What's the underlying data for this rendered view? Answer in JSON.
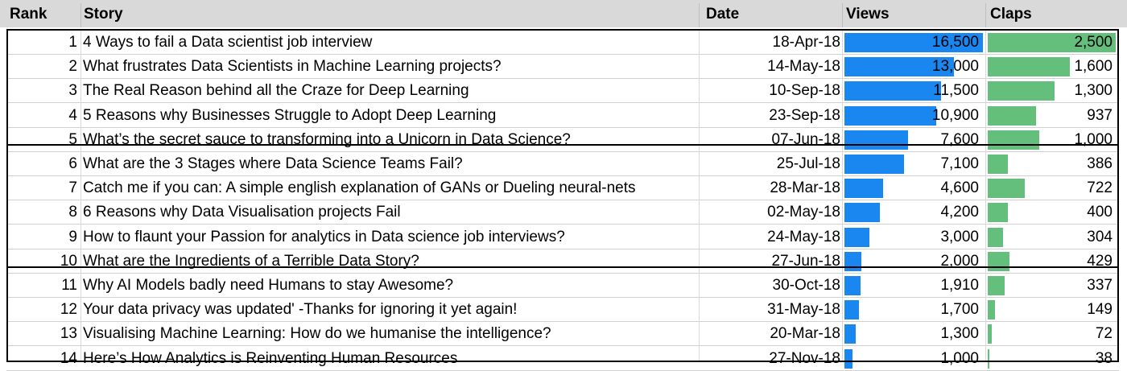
{
  "headers": {
    "rank": "Rank",
    "story": "Story",
    "date": "Date",
    "views": "Views",
    "claps": "Claps"
  },
  "colors": {
    "header_bg": "#d9d9d9",
    "views_bar": "#1a86f0",
    "claps_bar": "#63bf7b"
  },
  "scales": {
    "views_max": 16500,
    "claps_max": 2500
  },
  "rows": [
    {
      "rank": "1",
      "story": "4 Ways to fail a Data scientist job interview",
      "date": "18-Apr-18",
      "views": "16,500",
      "views_value": 16500,
      "claps": "2,500",
      "claps_value": 2500
    },
    {
      "rank": "2",
      "story": "What frustrates Data Scientists in Machine Learning projects?",
      "date": "14-May-18",
      "views": "13,000",
      "views_value": 13000,
      "claps": "1,600",
      "claps_value": 1600
    },
    {
      "rank": "3",
      "story": "The Real Reason behind all the Craze for Deep Learning",
      "date": "10-Sep-18",
      "views": "11,500",
      "views_value": 11500,
      "claps": "1,300",
      "claps_value": 1300
    },
    {
      "rank": "4",
      "story": "5 Reasons why Businesses Struggle to Adopt Deep Learning",
      "date": "23-Sep-18",
      "views": "10,900",
      "views_value": 10900,
      "claps": "937",
      "claps_value": 937
    },
    {
      "rank": "5",
      "story": "What’s the secret sauce to transforming into a Unicorn in Data Science?",
      "date": "07-Jun-18",
      "views": "7,600",
      "views_value": 7600,
      "claps": "1,000",
      "claps_value": 1000
    },
    {
      "rank": "6",
      "story": "What are the 3 Stages where Data Science Teams Fail?",
      "date": "25-Jul-18",
      "views": "7,100",
      "views_value": 7100,
      "claps": "386",
      "claps_value": 386
    },
    {
      "rank": "7",
      "story": "Catch me if you can: A simple english explanation of GANs or Dueling neural-nets",
      "date": "28-Mar-18",
      "views": "4,600",
      "views_value": 4600,
      "claps": "722",
      "claps_value": 722
    },
    {
      "rank": "8",
      "story": "6 Reasons why Data Visualisation projects Fail",
      "date": "02-May-18",
      "views": "4,200",
      "views_value": 4200,
      "claps": "400",
      "claps_value": 400
    },
    {
      "rank": "9",
      "story": "How to flaunt your Passion for analytics in Data science job interviews?",
      "date": "24-May-18",
      "views": "3,000",
      "views_value": 3000,
      "claps": "304",
      "claps_value": 304
    },
    {
      "rank": "10",
      "story": "What are the Ingredients of a Terrible Data Story?",
      "date": "27-Jun-18",
      "views": "2,000",
      "views_value": 2000,
      "claps": "429",
      "claps_value": 429
    },
    {
      "rank": "11",
      "story": "Why AI Models badly need Humans to stay Awesome?",
      "date": "30-Oct-18",
      "views": "1,910",
      "views_value": 1910,
      "claps": "337",
      "claps_value": 337
    },
    {
      "rank": "12",
      "story": "Your data privacy was updated' -Thanks for ignoring it yet again!",
      "date": "31-May-18",
      "views": "1,700",
      "views_value": 1700,
      "claps": "149",
      "claps_value": 149
    },
    {
      "rank": "13",
      "story": "Visualising Machine Learning: How do we humanise the intelligence?",
      "date": "20-Mar-18",
      "views": "1,300",
      "views_value": 1300,
      "claps": "72",
      "claps_value": 72
    },
    {
      "rank": "14",
      "story": "Here’s How Analytics is Reinventing Human Resources",
      "date": "27-Nov-18",
      "views": "1,000",
      "views_value": 1000,
      "claps": "38",
      "claps_value": 38
    }
  ]
}
